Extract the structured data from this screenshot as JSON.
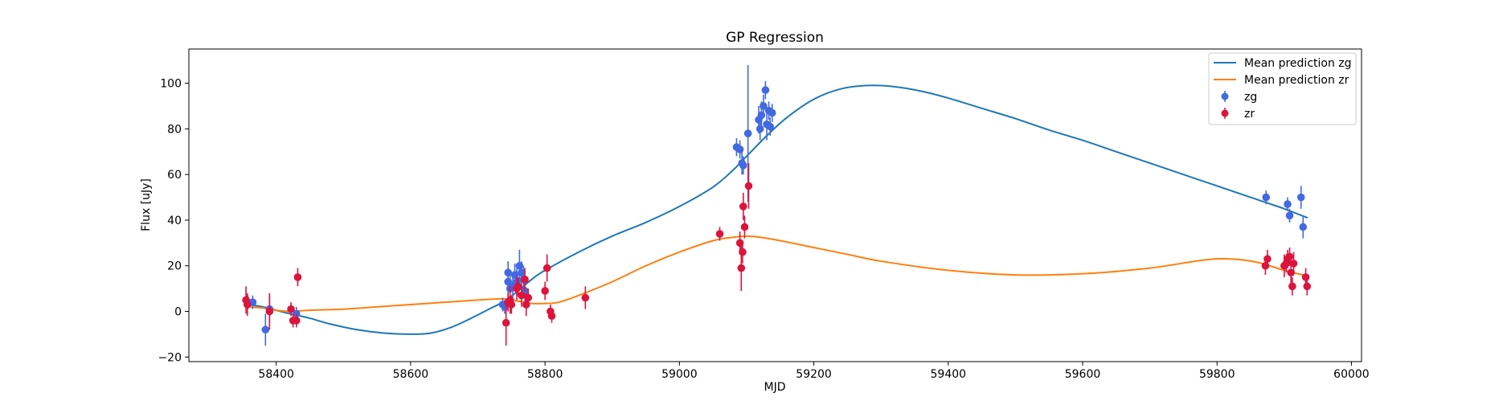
{
  "chart_data": {
    "type": "scatter",
    "title": "GP Regression",
    "xlabel": "MJD",
    "ylabel": "Flux [uJy]",
    "xlim": [
      58270,
      60015
    ],
    "ylim": [
      -22,
      115
    ],
    "xticks": [
      58400,
      58600,
      58800,
      59000,
      59200,
      59400,
      59600,
      59800,
      60000
    ],
    "yticks": [
      -20,
      0,
      20,
      40,
      60,
      80,
      100
    ],
    "grid": false,
    "legend_position": "top-right",
    "series": [
      {
        "name": "Mean prediction zg",
        "kind": "line",
        "color": "#1f77b4",
        "points": [
          [
            58357,
            3
          ],
          [
            58380,
            2
          ],
          [
            58400,
            0.5
          ],
          [
            58420,
            -1
          ],
          [
            58450,
            -3
          ],
          [
            58480,
            -5.5
          ],
          [
            58520,
            -8
          ],
          [
            58560,
            -9.5
          ],
          [
            58600,
            -10
          ],
          [
            58630,
            -9.5
          ],
          [
            58660,
            -7
          ],
          [
            58690,
            -3
          ],
          [
            58720,
            1.5
          ],
          [
            58740,
            4.5
          ],
          [
            58760,
            9
          ],
          [
            58780,
            14
          ],
          [
            58800,
            18
          ],
          [
            58850,
            26
          ],
          [
            58900,
            33
          ],
          [
            58950,
            39
          ],
          [
            59000,
            46
          ],
          [
            59050,
            54.5
          ],
          [
            59080,
            62
          ],
          [
            59100,
            68
          ],
          [
            59130,
            77
          ],
          [
            59160,
            85
          ],
          [
            59200,
            93
          ],
          [
            59240,
            97.5
          ],
          [
            59280,
            99
          ],
          [
            59320,
            98.5
          ],
          [
            59360,
            96.5
          ],
          [
            59400,
            93.5
          ],
          [
            59450,
            89
          ],
          [
            59500,
            84.5
          ],
          [
            59550,
            79.5
          ],
          [
            59600,
            75
          ],
          [
            59650,
            70
          ],
          [
            59700,
            65
          ],
          [
            59750,
            60
          ],
          [
            59800,
            55
          ],
          [
            59850,
            50
          ],
          [
            59880,
            47
          ],
          [
            59900,
            45
          ],
          [
            59935,
            41
          ]
        ]
      },
      {
        "name": "Mean prediction zr",
        "kind": "line",
        "color": "#ff7f0e",
        "points": [
          [
            58357,
            2
          ],
          [
            58380,
            1.5
          ],
          [
            58400,
            0.5
          ],
          [
            58420,
            0
          ],
          [
            58450,
            0.5
          ],
          [
            58500,
            1
          ],
          [
            58550,
            2
          ],
          [
            58600,
            3
          ],
          [
            58650,
            4
          ],
          [
            58700,
            5
          ],
          [
            58740,
            5.5
          ],
          [
            58760,
            4.5
          ],
          [
            58780,
            3.5
          ],
          [
            58800,
            3.5
          ],
          [
            58820,
            4
          ],
          [
            58850,
            7
          ],
          [
            58900,
            13
          ],
          [
            58950,
            20
          ],
          [
            59000,
            26
          ],
          [
            59050,
            31
          ],
          [
            59080,
            32.5
          ],
          [
            59100,
            33
          ],
          [
            59120,
            32.5
          ],
          [
            59150,
            31
          ],
          [
            59200,
            28
          ],
          [
            59250,
            25
          ],
          [
            59300,
            22
          ],
          [
            59400,
            18
          ],
          [
            59500,
            16
          ],
          [
            59600,
            16.5
          ],
          [
            59700,
            19
          ],
          [
            59780,
            22.5
          ],
          [
            59820,
            23
          ],
          [
            59860,
            21.5
          ],
          [
            59900,
            18
          ],
          [
            59935,
            15.5
          ]
        ]
      },
      {
        "name": "zg",
        "kind": "errorbar",
        "color": "#4169e1",
        "points": [
          [
            58358,
            4,
            3
          ],
          [
            58365,
            4,
            3
          ],
          [
            58384,
            -8,
            7
          ],
          [
            58390,
            1,
            6
          ],
          [
            58430,
            -1,
            3
          ],
          [
            58737,
            3,
            3
          ],
          [
            58740,
            2,
            3
          ],
          [
            58745,
            17,
            5
          ],
          [
            58745,
            13,
            6
          ],
          [
            58748,
            10,
            6
          ],
          [
            58752,
            11,
            5
          ],
          [
            58755,
            16,
            5
          ],
          [
            58758,
            13,
            6
          ],
          [
            58762,
            20,
            7
          ],
          [
            58765,
            17,
            5
          ],
          [
            58768,
            14,
            6
          ],
          [
            58770,
            9,
            5
          ],
          [
            59085,
            72,
            4
          ],
          [
            59090,
            71,
            4
          ],
          [
            59093,
            65,
            5
          ],
          [
            59095,
            64,
            4
          ],
          [
            59102,
            78,
            30
          ],
          [
            59118,
            84,
            6
          ],
          [
            59120,
            80,
            5
          ],
          [
            59122,
            86,
            6
          ],
          [
            59125,
            90,
            5
          ],
          [
            59128,
            97,
            4
          ],
          [
            59130,
            82,
            7
          ],
          [
            59133,
            88,
            4
          ],
          [
            59135,
            81,
            4
          ],
          [
            59138,
            87,
            4
          ],
          [
            59873,
            50,
            3
          ],
          [
            59905,
            47,
            3
          ],
          [
            59908,
            42,
            3
          ],
          [
            59925,
            50,
            5
          ],
          [
            59928,
            37,
            5
          ]
        ]
      },
      {
        "name": "zr",
        "kind": "errorbar",
        "color": "#dc143c",
        "points": [
          [
            58355,
            5,
            6
          ],
          [
            58357,
            3,
            5
          ],
          [
            58390,
            0,
            8
          ],
          [
            58422,
            1,
            3
          ],
          [
            58425,
            -4,
            3
          ],
          [
            58430,
            -4,
            3
          ],
          [
            58432,
            15,
            4
          ],
          [
            58742,
            -5,
            10
          ],
          [
            58745,
            4,
            4
          ],
          [
            58748,
            5,
            6
          ],
          [
            58750,
            3,
            4
          ],
          [
            58758,
            10,
            5
          ],
          [
            58760,
            11,
            4
          ],
          [
            58765,
            7,
            5
          ],
          [
            58770,
            14,
            5
          ],
          [
            58772,
            3,
            5
          ],
          [
            58775,
            6,
            4
          ],
          [
            58800,
            9,
            4
          ],
          [
            58803,
            19,
            6
          ],
          [
            58808,
            0,
            3
          ],
          [
            58810,
            -2,
            3
          ],
          [
            58860,
            6,
            5
          ],
          [
            59060,
            34,
            3
          ],
          [
            59090,
            30,
            5
          ],
          [
            59092,
            19,
            10
          ],
          [
            59094,
            26,
            5
          ],
          [
            59095,
            46,
            6
          ],
          [
            59097,
            37,
            5
          ],
          [
            59103,
            55,
            10
          ],
          [
            59872,
            20,
            4
          ],
          [
            59875,
            23,
            4
          ],
          [
            59900,
            20,
            5
          ],
          [
            59903,
            21,
            4
          ],
          [
            59905,
            23,
            4
          ],
          [
            59908,
            24,
            4
          ],
          [
            59910,
            17,
            5
          ],
          [
            59912,
            11,
            4
          ],
          [
            59914,
            21,
            5
          ],
          [
            59932,
            15,
            4
          ],
          [
            59934,
            11,
            4
          ]
        ]
      }
    ]
  }
}
